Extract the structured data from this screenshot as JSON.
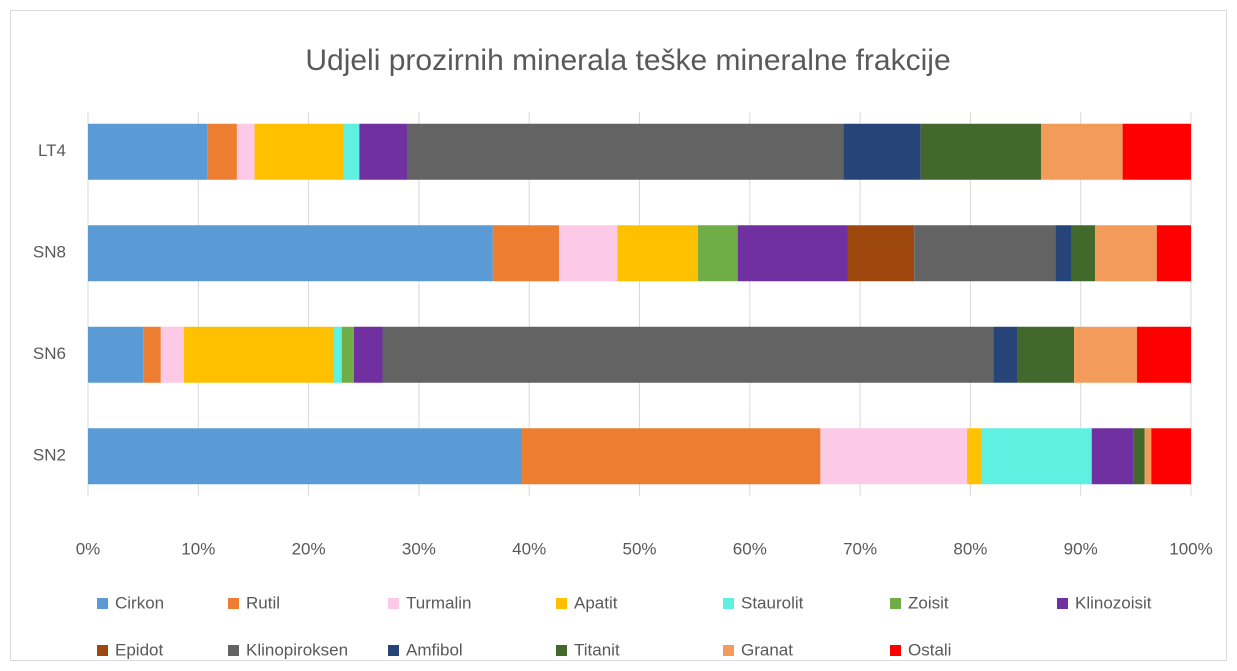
{
  "chart_data": {
    "type": "stacked-bar-horizontal",
    "title": "Udjeli prozirnih minerala teške mineralne frakcije",
    "categories": [
      "LT4",
      "SN8",
      "SN6",
      "SN2"
    ],
    "xlim": [
      0,
      100
    ],
    "xticks": [
      {
        "value": 0,
        "label": "0%"
      },
      {
        "value": 10,
        "label": "10%"
      },
      {
        "value": 20,
        "label": "20%"
      },
      {
        "value": 30,
        "label": "30%"
      },
      {
        "value": 40,
        "label": "40%"
      },
      {
        "value": 50,
        "label": "50%"
      },
      {
        "value": 60,
        "label": "60%"
      },
      {
        "value": 70,
        "label": "70%"
      },
      {
        "value": 80,
        "label": "80%"
      },
      {
        "value": 90,
        "label": "90%"
      },
      {
        "value": 100,
        "label": "100%"
      }
    ],
    "grid": true,
    "legend": "bottom",
    "series": [
      {
        "name": "Cirkon",
        "color": "#5b9bd5",
        "values": [
          10.8,
          36.7,
          5.0,
          39.3
        ]
      },
      {
        "name": "Rutil",
        "color": "#ed7d31",
        "values": [
          2.7,
          6.0,
          1.6,
          27.1
        ]
      },
      {
        "name": "Turmalin",
        "color": "#fcc9e6",
        "values": [
          1.6,
          5.3,
          2.1,
          13.3
        ]
      },
      {
        "name": "Apatit",
        "color": "#ffc000",
        "values": [
          8.1,
          7.3,
          13.6,
          1.3
        ]
      },
      {
        "name": "Staurolit",
        "color": "#5ef0e0",
        "values": [
          1.4,
          0,
          0.7,
          10.0
        ]
      },
      {
        "name": "Zoisit",
        "color": "#70ad47",
        "values": [
          0,
          3.6,
          1.1,
          0
        ]
      },
      {
        "name": "Klinozoisit",
        "color": "#7030a0",
        "values": [
          4.4,
          10.0,
          2.6,
          3.8
        ]
      },
      {
        "name": "Epidot",
        "color": "#9e480e",
        "values": [
          0,
          6.0,
          0,
          0
        ]
      },
      {
        "name": "Klinopiroksen",
        "color": "#636363",
        "values": [
          39.5,
          12.8,
          55.4,
          0
        ]
      },
      {
        "name": "Amfibol",
        "color": "#264478",
        "values": [
          7.0,
          1.5,
          2.2,
          0
        ]
      },
      {
        "name": "Titanit",
        "color": "#43682b",
        "values": [
          10.9,
          2.1,
          5.1,
          1.0
        ]
      },
      {
        "name": "Granat",
        "color": "#f29b5b",
        "values": [
          7.4,
          5.6,
          5.7,
          0.6
        ]
      },
      {
        "name": "Ostali",
        "color": "#ff0000",
        "values": [
          6.2,
          3.1,
          4.9,
          3.6
        ]
      }
    ]
  }
}
